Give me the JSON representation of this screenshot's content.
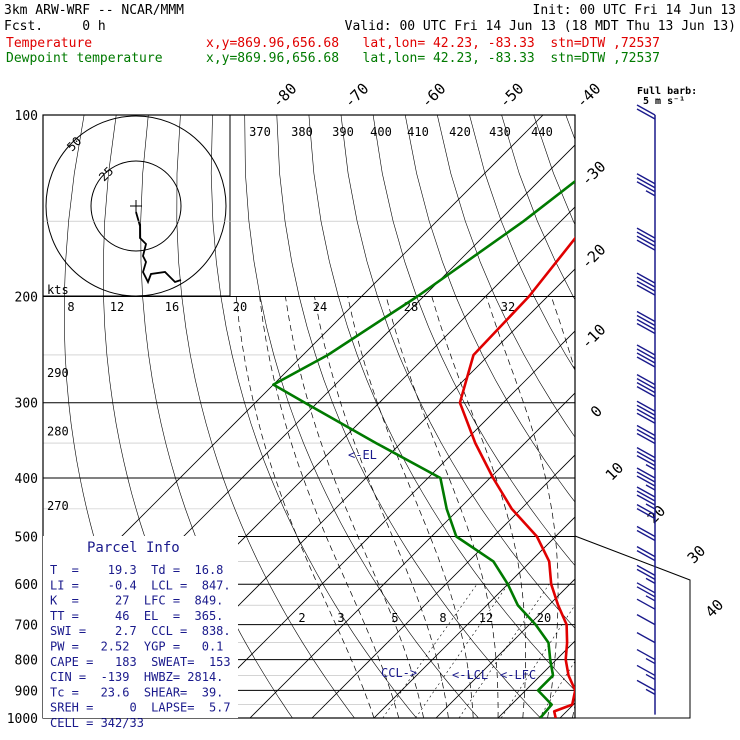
{
  "header": {
    "model": "3km ARW-WRF -- NCAR/MMM",
    "init": "Init: 00 UTC Fri 14 Jun 13",
    "fcst": "Fcst.     0 h",
    "valid": "Valid: 00 UTC Fri 14 Jun 13 (18 MDT Thu 13 Jun 13)",
    "temp_label": "Temperature",
    "temp_info": "x,y=869.96,656.68   lat,lon= 42.23, -83.33  stn=DTW ,72537",
    "dew_label": "Dewpoint temperature",
    "dew_info": "x,y=869.96,656.68   lat,lon= 42.23, -83.33  stn=DTW ,72537"
  },
  "colors": {
    "temperature": "#e00000",
    "dewpoint": "#007a00",
    "barbs": "#1a1a8c",
    "grid": "#000000"
  },
  "chart_data": {
    "type": "line",
    "subtype": "skew-T log-P sounding",
    "y_axis_label_values": [
      100,
      200,
      300,
      400,
      500,
      600,
      700,
      800,
      900,
      1000
    ],
    "pressure_lines": [
      100,
      200,
      300,
      400,
      500,
      600,
      700,
      800,
      900,
      1000
    ],
    "isotherm_labels_top": [
      "-80",
      "-70",
      "-60",
      "-50",
      "-40"
    ],
    "isotherm_labels_right": [
      "-30",
      "-20",
      "-10",
      "0",
      "10",
      "20",
      "30",
      "40"
    ],
    "isotherms": [
      -80,
      -70,
      -60,
      -50,
      -40,
      -30,
      -20,
      -10,
      0,
      10,
      20,
      30,
      40
    ],
    "theta_e_labels": [
      "370",
      "380",
      "390",
      "400",
      "410",
      "420",
      "430",
      "440"
    ],
    "mixing_ratio_labels": [
      "2",
      "3",
      "5",
      "8",
      "12",
      "20"
    ],
    "mixing_ratios": [
      2,
      3,
      5,
      8,
      12,
      20
    ],
    "hodograph_speed_labels": [
      "8",
      "12",
      "16",
      "20",
      "24",
      "28",
      "32"
    ],
    "kts_label": "kts",
    "ring_labels": [
      "50",
      "25"
    ],
    "side_labels": [
      {
        "text": "290",
        "p": 268
      },
      {
        "text": "280",
        "p": 335
      },
      {
        "text": "270",
        "p": 445
      }
    ],
    "annotations": {
      "el": "<-EL",
      "lfc": "<-LFC",
      "lcl": "<-LCL",
      "ccl": "CCL->"
    },
    "full_barb_label": "Full barb:",
    "full_barb_value": "5 m s⁻¹",
    "series": [
      {
        "name": "Temperature",
        "color": "#e00000",
        "points": [
          [
            100,
            -56
          ],
          [
            150,
            -55.5
          ],
          [
            200,
            -53
          ],
          [
            250,
            -52.5
          ],
          [
            300,
            -47
          ],
          [
            350,
            -38
          ],
          [
            400,
            -29.5
          ],
          [
            450,
            -21.5
          ],
          [
            500,
            -13
          ],
          [
            550,
            -7
          ],
          [
            600,
            -3
          ],
          [
            650,
            1.5
          ],
          [
            700,
            6
          ],
          [
            750,
            9
          ],
          [
            800,
            11.5
          ],
          [
            850,
            14.5
          ],
          [
            900,
            18
          ],
          [
            950,
            19.8
          ],
          [
            975,
            18
          ],
          [
            1000,
            19.3
          ]
        ]
      },
      {
        "name": "Dewpoint temperature",
        "color": "#007a00",
        "points": [
          [
            100,
            -61
          ],
          [
            150,
            -66
          ],
          [
            200,
            -71
          ],
          [
            250,
            -76
          ],
          [
            280,
            -80
          ],
          [
            300,
            -72
          ],
          [
            350,
            -54
          ],
          [
            400,
            -38
          ],
          [
            450,
            -32
          ],
          [
            500,
            -26
          ],
          [
            550,
            -16
          ],
          [
            600,
            -10
          ],
          [
            650,
            -5
          ],
          [
            700,
            1
          ],
          [
            750,
            6
          ],
          [
            800,
            9
          ],
          [
            850,
            12
          ],
          [
            900,
            12
          ],
          [
            950,
            16.5
          ],
          [
            1000,
            16.8
          ]
        ]
      }
    ],
    "wind_barbs": [
      {
        "p": 100,
        "speed_ms": 12
      },
      {
        "p": 130,
        "speed_ms": 14
      },
      {
        "p": 160,
        "speed_ms": 18
      },
      {
        "p": 190,
        "speed_ms": 20
      },
      {
        "p": 220,
        "speed_ms": 22
      },
      {
        "p": 250,
        "speed_ms": 22
      },
      {
        "p": 280,
        "speed_ms": 20
      },
      {
        "p": 310,
        "speed_ms": 18
      },
      {
        "p": 340,
        "speed_ms": 16
      },
      {
        "p": 370,
        "speed_ms": 14
      },
      {
        "p": 400,
        "speed_ms": 14
      },
      {
        "p": 430,
        "speed_ms": 13
      },
      {
        "p": 460,
        "speed_ms": 12
      },
      {
        "p": 500,
        "speed_ms": 11
      },
      {
        "p": 540,
        "speed_ms": 10
      },
      {
        "p": 580,
        "speed_ms": 9
      },
      {
        "p": 620,
        "speed_ms": 8
      },
      {
        "p": 660,
        "speed_ms": 7
      },
      {
        "p": 700,
        "speed_ms": 6
      },
      {
        "p": 750,
        "speed_ms": 5
      },
      {
        "p": 800,
        "speed_ms": 4
      },
      {
        "p": 850,
        "speed_ms": 4
      },
      {
        "p": 900,
        "speed_ms": 3
      },
      {
        "p": 950,
        "speed_ms": 2
      }
    ]
  },
  "parcel_info": {
    "title": "Parcel Info",
    "rows": [
      "T  =    19.3  Td =  16.8",
      "LI =    -0.4  LCL =  847.",
      "K  =     27  LFC =  849.",
      "TT =     46  EL  =  365.",
      "SWI =    2.7  CCL =  838.",
      "PW =   2.52  YGP =   0.1",
      "CAPE =   183  SWEAT=  153",
      "CIN =  -139  HWBZ= 2814.",
      "Tc =   23.6  SHEAR=  39.",
      "SREH =     0  LAPSE=  5.7",
      "CELL = 342/33"
    ]
  }
}
